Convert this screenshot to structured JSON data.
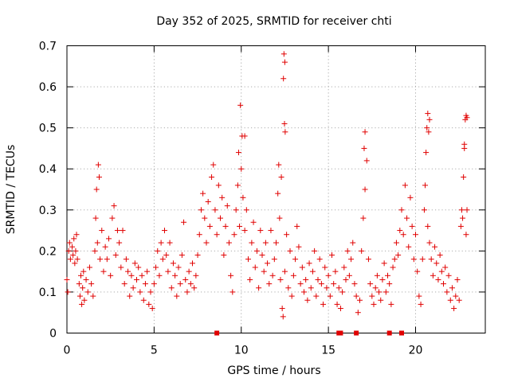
{
  "chart_data": {
    "type": "scatter",
    "title": "Day 352 of 2025, SRMTID for receiver chti",
    "xlabel": "GPS time / hours",
    "ylabel": "SRMTID / TECUs",
    "xlim": [
      0,
      24
    ],
    "ylim": [
      0,
      0.7
    ],
    "x_ticks": [
      0,
      5,
      10,
      15,
      20
    ],
    "x_tick_labels": [
      "0",
      "5",
      "10",
      "15",
      "20"
    ],
    "y_ticks": [
      0,
      0.1,
      0.2,
      0.3,
      0.4,
      0.5,
      0.6,
      0.7
    ],
    "y_tick_labels": [
      "0",
      "0.1",
      "0.2",
      "0.3",
      "0.4",
      "0.5",
      "0.6",
      "0.7"
    ],
    "grid": true,
    "marker": "+",
    "color": "#e00000",
    "series": [
      {
        "name": "SRMTID",
        "points": [
          [
            0.0,
            0.13
          ],
          [
            0.05,
            0.1
          ],
          [
            0.1,
            0.2
          ],
          [
            0.15,
            0.22
          ],
          [
            0.2,
            0.18
          ],
          [
            0.3,
            0.21
          ],
          [
            0.35,
            0.19
          ],
          [
            0.4,
            0.23
          ],
          [
            0.45,
            0.17
          ],
          [
            0.5,
            0.2
          ],
          [
            0.55,
            0.24
          ],
          [
            0.6,
            0.18
          ],
          [
            0.7,
            0.12
          ],
          [
            0.75,
            0.09
          ],
          [
            0.8,
            0.14
          ],
          [
            0.85,
            0.07
          ],
          [
            0.9,
            0.11
          ],
          [
            0.95,
            0.15
          ],
          [
            1.0,
            0.08
          ],
          [
            1.1,
            0.13
          ],
          [
            1.2,
            0.1
          ],
          [
            1.3,
            0.16
          ],
          [
            1.4,
            0.12
          ],
          [
            1.5,
            0.09
          ],
          [
            1.6,
            0.2
          ],
          [
            1.65,
            0.28
          ],
          [
            1.7,
            0.35
          ],
          [
            1.75,
            0.22
          ],
          [
            1.8,
            0.41
          ],
          [
            1.85,
            0.38
          ],
          [
            1.9,
            0.18
          ],
          [
            2.0,
            0.25
          ],
          [
            2.1,
            0.15
          ],
          [
            2.2,
            0.21
          ],
          [
            2.3,
            0.18
          ],
          [
            2.4,
            0.23
          ],
          [
            2.5,
            0.14
          ],
          [
            2.6,
            0.28
          ],
          [
            2.7,
            0.31
          ],
          [
            2.8,
            0.19
          ],
          [
            2.9,
            0.25
          ],
          [
            3.0,
            0.22
          ],
          [
            3.1,
            0.16
          ],
          [
            3.2,
            0.25
          ],
          [
            3.3,
            0.12
          ],
          [
            3.4,
            0.18
          ],
          [
            3.5,
            0.15
          ],
          [
            3.6,
            0.09
          ],
          [
            3.7,
            0.14
          ],
          [
            3.8,
            0.11
          ],
          [
            3.9,
            0.17
          ],
          [
            4.0,
            0.13
          ],
          [
            4.1,
            0.16
          ],
          [
            4.2,
            0.1
          ],
          [
            4.3,
            0.14
          ],
          [
            4.4,
            0.08
          ],
          [
            4.5,
            0.12
          ],
          [
            4.6,
            0.15
          ],
          [
            4.7,
            0.07
          ],
          [
            4.8,
            0.1
          ],
          [
            4.9,
            0.06
          ],
          [
            5.0,
            0.12
          ],
          [
            5.1,
            0.16
          ],
          [
            5.2,
            0.2
          ],
          [
            5.3,
            0.14
          ],
          [
            5.4,
            0.22
          ],
          [
            5.5,
            0.18
          ],
          [
            5.6,
            0.25
          ],
          [
            5.7,
            0.19
          ],
          [
            5.8,
            0.15
          ],
          [
            5.9,
            0.22
          ],
          [
            6.0,
            0.11
          ],
          [
            6.1,
            0.17
          ],
          [
            6.2,
            0.14
          ],
          [
            6.3,
            0.09
          ],
          [
            6.4,
            0.16
          ],
          [
            6.5,
            0.12
          ],
          [
            6.6,
            0.19
          ],
          [
            6.7,
            0.27
          ],
          [
            6.8,
            0.13
          ],
          [
            6.9,
            0.1
          ],
          [
            7.0,
            0.15
          ],
          [
            7.1,
            0.12
          ],
          [
            7.2,
            0.17
          ],
          [
            7.3,
            0.11
          ],
          [
            7.4,
            0.14
          ],
          [
            7.5,
            0.19
          ],
          [
            7.6,
            0.24
          ],
          [
            7.7,
            0.3
          ],
          [
            7.8,
            0.34
          ],
          [
            7.9,
            0.28
          ],
          [
            8.0,
            0.22
          ],
          [
            8.1,
            0.32
          ],
          [
            8.2,
            0.26
          ],
          [
            8.3,
            0.38
          ],
          [
            8.4,
            0.41
          ],
          [
            8.5,
            0.3
          ],
          [
            8.6,
            0.24
          ],
          [
            8.7,
            0.36
          ],
          [
            8.8,
            0.28
          ],
          [
            8.9,
            0.33
          ],
          [
            9.0,
            0.19
          ],
          [
            9.1,
            0.26
          ],
          [
            9.2,
            0.31
          ],
          [
            9.3,
            0.22
          ],
          [
            9.4,
            0.14
          ],
          [
            9.5,
            0.1
          ],
          [
            9.6,
            0.24
          ],
          [
            9.7,
            0.3
          ],
          [
            9.8,
            0.36
          ],
          [
            9.85,
            0.44
          ],
          [
            9.9,
            0.26
          ],
          [
            10.0,
            0.4
          ],
          [
            10.05,
            0.48
          ],
          [
            10.1,
            0.33
          ],
          [
            10.2,
            0.25
          ],
          [
            10.3,
            0.3
          ],
          [
            10.4,
            0.18
          ],
          [
            10.5,
            0.13
          ],
          [
            10.6,
            0.22
          ],
          [
            10.7,
            0.27
          ],
          [
            10.8,
            0.16
          ],
          [
            10.9,
            0.2
          ],
          [
            11.0,
            0.11
          ],
          [
            11.1,
            0.25
          ],
          [
            11.2,
            0.19
          ],
          [
            11.3,
            0.15
          ],
          [
            11.4,
            0.22
          ],
          [
            11.5,
            0.17
          ],
          [
            11.6,
            0.12
          ],
          [
            11.7,
            0.25
          ],
          [
            11.8,
            0.14
          ],
          [
            11.9,
            0.18
          ],
          [
            12.0,
            0.22
          ],
          [
            12.1,
            0.34
          ],
          [
            12.15,
            0.41
          ],
          [
            12.2,
            0.28
          ],
          [
            12.25,
            0.13
          ],
          [
            12.3,
            0.38
          ],
          [
            12.35,
            0.06
          ],
          [
            12.4,
            0.04
          ],
          [
            12.5,
            0.15
          ],
          [
            12.6,
            0.24
          ],
          [
            12.7,
            0.11
          ],
          [
            12.8,
            0.2
          ],
          [
            12.9,
            0.09
          ],
          [
            13.0,
            0.14
          ],
          [
            13.1,
            0.18
          ],
          [
            13.2,
            0.26
          ],
          [
            13.3,
            0.21
          ],
          [
            13.4,
            0.12
          ],
          [
            13.5,
            0.16
          ],
          [
            13.6,
            0.1
          ],
          [
            13.7,
            0.13
          ],
          [
            13.8,
            0.08
          ],
          [
            13.9,
            0.17
          ],
          [
            14.0,
            0.11
          ],
          [
            14.1,
            0.15
          ],
          [
            14.2,
            0.2
          ],
          [
            14.3,
            0.09
          ],
          [
            14.4,
            0.13
          ],
          [
            14.5,
            0.18
          ],
          [
            14.6,
            0.12
          ],
          [
            14.7,
            0.07
          ],
          [
            14.8,
            0.16
          ],
          [
            14.9,
            0.11
          ],
          [
            15.0,
            0.14
          ],
          [
            15.1,
            0.09
          ],
          [
            15.2,
            0.19
          ],
          [
            15.3,
            0.12
          ],
          [
            15.4,
            0.15
          ],
          [
            15.5,
            0.07
          ],
          [
            15.6,
            0.11
          ],
          [
            15.7,
            0.06
          ],
          [
            15.8,
            0.1
          ],
          [
            15.9,
            0.16
          ],
          [
            16.0,
            0.13
          ],
          [
            16.1,
            0.2
          ],
          [
            16.2,
            0.14
          ],
          [
            16.3,
            0.18
          ],
          [
            16.4,
            0.22
          ],
          [
            16.5,
            0.12
          ],
          [
            16.6,
            0.09
          ],
          [
            16.7,
            0.05
          ],
          [
            16.8,
            0.08
          ],
          [
            16.9,
            0.2
          ],
          [
            17.0,
            0.28
          ],
          [
            17.1,
            0.35
          ],
          [
            17.2,
            0.42
          ],
          [
            17.3,
            0.18
          ],
          [
            17.4,
            0.12
          ],
          [
            17.5,
            0.09
          ],
          [
            17.6,
            0.07
          ],
          [
            17.7,
            0.11
          ],
          [
            17.8,
            0.14
          ],
          [
            17.9,
            0.1
          ],
          [
            18.0,
            0.08
          ],
          [
            18.1,
            0.13
          ],
          [
            18.2,
            0.17
          ],
          [
            18.3,
            0.1
          ],
          [
            18.4,
            0.14
          ],
          [
            18.5,
            0.12
          ],
          [
            18.6,
            0.07
          ],
          [
            18.7,
            0.16
          ],
          [
            18.8,
            0.18
          ],
          [
            18.9,
            0.22
          ],
          [
            19.0,
            0.19
          ],
          [
            19.1,
            0.25
          ],
          [
            19.2,
            0.3
          ],
          [
            19.3,
            0.24
          ],
          [
            19.4,
            0.36
          ],
          [
            19.5,
            0.28
          ],
          [
            19.6,
            0.21
          ],
          [
            19.7,
            0.33
          ],
          [
            19.8,
            0.26
          ],
          [
            19.9,
            0.18
          ],
          [
            20.0,
            0.24
          ],
          [
            20.1,
            0.15
          ],
          [
            20.2,
            0.09
          ],
          [
            20.3,
            0.07
          ],
          [
            20.4,
            0.18
          ],
          [
            20.5,
            0.3
          ],
          [
            20.55,
            0.36
          ],
          [
            20.6,
            0.44
          ],
          [
            20.65,
            0.5
          ],
          [
            20.7,
            0.26
          ],
          [
            20.8,
            0.22
          ],
          [
            20.9,
            0.18
          ],
          [
            21.0,
            0.14
          ],
          [
            21.1,
            0.21
          ],
          [
            21.2,
            0.17
          ],
          [
            21.3,
            0.13
          ],
          [
            21.4,
            0.19
          ],
          [
            21.5,
            0.15
          ],
          [
            21.6,
            0.12
          ],
          [
            21.7,
            0.16
          ],
          [
            21.8,
            0.1
          ],
          [
            21.9,
            0.14
          ],
          [
            22.0,
            0.08
          ],
          [
            22.1,
            0.11
          ],
          [
            22.2,
            0.06
          ],
          [
            22.3,
            0.09
          ],
          [
            22.4,
            0.13
          ],
          [
            22.5,
            0.08
          ],
          [
            22.6,
            0.26
          ],
          [
            22.65,
            0.3
          ],
          [
            22.7,
            0.28
          ],
          [
            22.75,
            0.38
          ],
          [
            22.8,
            0.45
          ],
          [
            22.85,
            0.52
          ],
          [
            22.9,
            0.24
          ],
          [
            22.95,
            0.3
          ]
        ],
        "peaks": [
          [
            12.45,
            0.68
          ],
          [
            12.5,
            0.66
          ],
          [
            12.42,
            0.62
          ],
          [
            12.48,
            0.51
          ],
          [
            12.52,
            0.49
          ],
          [
            9.95,
            0.555
          ],
          [
            10.2,
            0.48
          ],
          [
            17.1,
            0.49
          ],
          [
            17.05,
            0.45
          ],
          [
            20.7,
            0.535
          ],
          [
            20.8,
            0.52
          ],
          [
            20.75,
            0.49
          ],
          [
            22.9,
            0.53
          ],
          [
            22.95,
            0.525
          ],
          [
            22.8,
            0.46
          ]
        ],
        "zero_points": [
          [
            8.6,
            0
          ],
          [
            15.6,
            0
          ],
          [
            15.7,
            0
          ],
          [
            16.6,
            0
          ],
          [
            18.5,
            0
          ],
          [
            19.2,
            0
          ]
        ]
      }
    ]
  }
}
